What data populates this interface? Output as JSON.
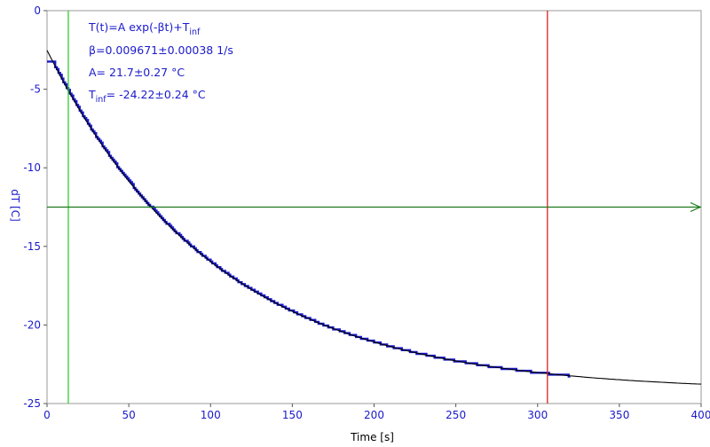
{
  "chart_data": {
    "type": "line",
    "xlabel": "Time [s]",
    "ylabel": "dT [C]",
    "xlim": [
      0,
      400
    ],
    "ylim": [
      -25,
      0
    ],
    "x_ticks": [
      0,
      50,
      100,
      150,
      200,
      250,
      300,
      350,
      400
    ],
    "y_ticks": [
      0,
      -5,
      -10,
      -15,
      -20,
      -25
    ],
    "grid": false,
    "colors": {
      "data": "#1a1acc",
      "fit": "#000000",
      "axis_labels": "#1a1acc",
      "tick_labels": "#1a1acc",
      "x_label": "#000000",
      "left_cursor": "#2fd02f",
      "right_cursor": "#dd2020",
      "threshold": "#1a7a1a"
    },
    "fit": {
      "model": "T(t)=A exp(-βt)+T_inf",
      "beta": 0.009671,
      "A": 21.7,
      "T_inf": -24.22
    },
    "data_series": {
      "x_start": 0,
      "x_end": 320,
      "plateau_until": 4,
      "plateau_value": -3.2
    },
    "cursors": {
      "left_x": 13,
      "right_x": 306
    },
    "threshold_y": -12.5,
    "annotations": {
      "line1_main": "T(t)=A exp(-βt)+T",
      "line1_sub": "inf",
      "line2": "β=0.009671±0.00038 1/s",
      "line3": "A= 21.7±0.27 °C",
      "line4_pre": "T",
      "line4_sub": "inf",
      "line4_post": "= -24.22±0.24 °C"
    }
  }
}
